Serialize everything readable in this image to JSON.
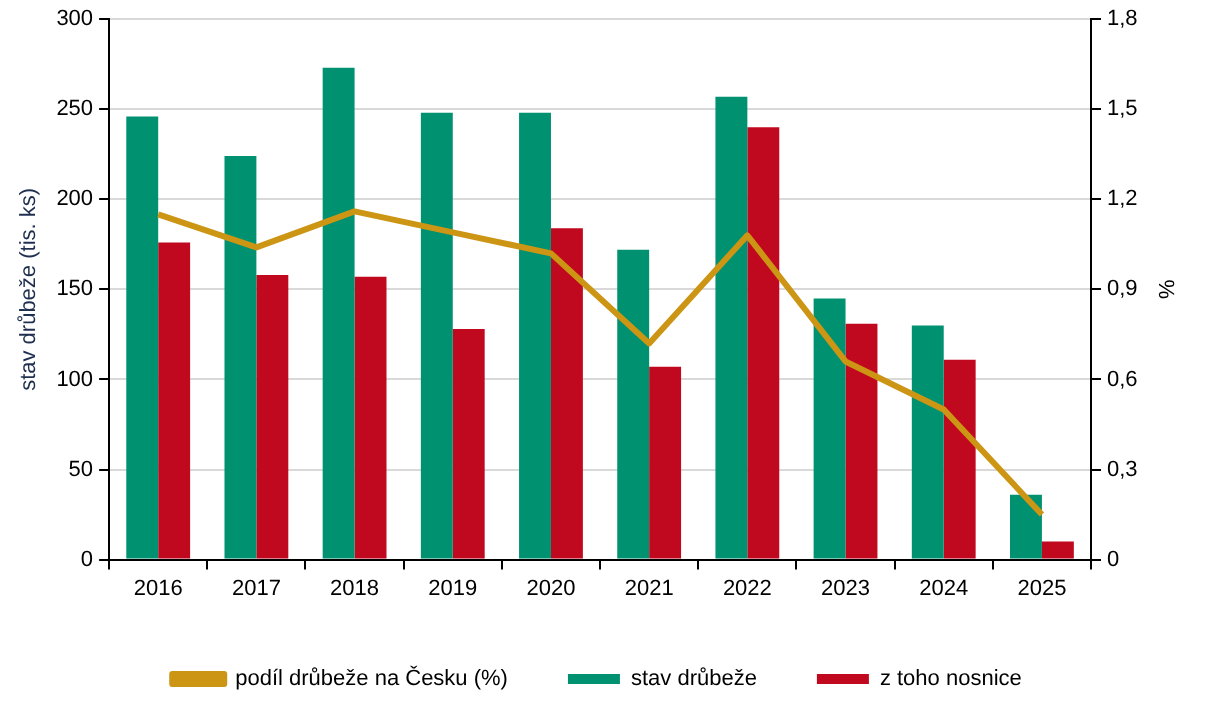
{
  "chart_data": {
    "type": "bar",
    "ylabel": "stav drůbeže (tis. ks)",
    "y2label": "%",
    "categories": [
      "2016",
      "2017",
      "2018",
      "2019",
      "2020",
      "2021",
      "2022",
      "2023",
      "2024",
      "2025"
    ],
    "series": [
      {
        "name": "stav drůbeže",
        "color": "#009170",
        "values": [
          246,
          224,
          273,
          248,
          248,
          172,
          257,
          145,
          130,
          36
        ]
      },
      {
        "name": "z toho nosnice",
        "color": "#c0091f",
        "values": [
          176,
          158,
          157,
          128,
          184,
          107,
          240,
          131,
          111,
          10
        ]
      },
      {
        "name": "podíl drůbeže na Česku (%)",
        "type": "line",
        "axis": "y2",
        "color": "#cc9514",
        "values": [
          1.15,
          1.04,
          1.16,
          1.09,
          1.02,
          0.72,
          1.08,
          0.66,
          0.5,
          0.15
        ]
      }
    ],
    "ylim": [
      0,
      300
    ],
    "yticks": [
      0,
      50,
      100,
      150,
      200,
      250,
      300
    ],
    "y2lim": [
      0,
      1.8
    ],
    "y2ticks": [
      0,
      {
        "value": 0.3,
        "label": "0,3"
      },
      {
        "value": 0.6,
        "label": "0,6"
      },
      {
        "value": 0.9,
        "label": "0,9"
      },
      {
        "value": 1.2,
        "label": "1,2"
      },
      {
        "value": 1.5,
        "label": "1,5"
      },
      {
        "value": 1.8,
        "label": "1,8"
      }
    ],
    "grid": "y",
    "legend": "bottom",
    "marker": "none"
  }
}
